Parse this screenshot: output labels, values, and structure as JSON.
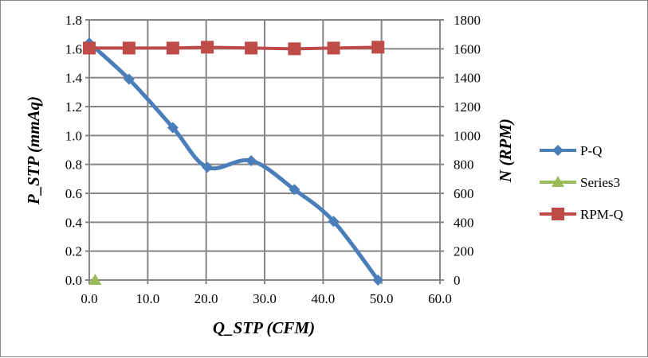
{
  "chart_data": {
    "type": "line",
    "title": "",
    "xlabel": "Q_STP (CFM)",
    "ylabel": "P_STP (mmAq)",
    "y2label": "N (RPM)",
    "xlim": [
      0,
      60
    ],
    "ylim": [
      0,
      1.8
    ],
    "y2lim": [
      0,
      1800
    ],
    "xticks": [
      "0.0",
      "10.0",
      "20.0",
      "30.0",
      "40.0",
      "50.0",
      "60.0"
    ],
    "yticks": [
      "0.0",
      "0.2",
      "0.4",
      "0.6",
      "0.8",
      "1.0",
      "1.2",
      "1.4",
      "1.6",
      "1.8"
    ],
    "y2ticks": [
      "0",
      "200",
      "400",
      "600",
      "800",
      "1000",
      "1200",
      "1400",
      "1600",
      "1800"
    ],
    "grid": true,
    "legend_position": "right",
    "series": [
      {
        "name": "P-Q",
        "axis": "left",
        "color": "#4a7ebb",
        "marker": "diamond",
        "smooth": true,
        "x": [
          0.0,
          6.8,
          14.3,
          20.2,
          27.7,
          35.1,
          41.8,
          49.4
        ],
        "y": [
          1.64,
          1.39,
          1.055,
          0.78,
          0.826,
          0.626,
          0.406,
          0.0
        ]
      },
      {
        "name": "Series3",
        "axis": "left",
        "color": "#9bbb59",
        "marker": "triangle",
        "smooth": false,
        "x": [
          1.0
        ],
        "y": [
          0.0
        ]
      },
      {
        "name": "RPM-Q",
        "axis": "right",
        "color": "#be4b48",
        "marker": "square",
        "smooth": false,
        "x": [
          0.0,
          6.8,
          14.3,
          20.2,
          27.7,
          35.1,
          41.8,
          49.4
        ],
        "y": [
          1605,
          1605,
          1605,
          1611,
          1605,
          1600,
          1605,
          1611
        ]
      }
    ]
  }
}
